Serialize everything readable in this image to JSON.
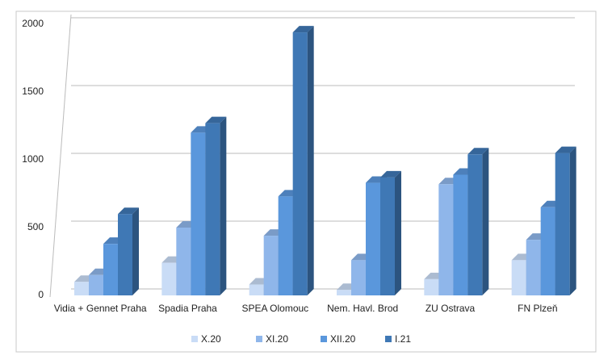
{
  "chart_data": {
    "type": "bar3d",
    "categories": [
      "Vidia + Gennet Praha",
      "Spadia Praha",
      "SPEA Olomouc",
      "Nem. Havl. Brod",
      "ZU Ostrava",
      "FN Plzeň"
    ],
    "series": [
      {
        "name": "X.20",
        "color": "#c9dcf6",
        "values": [
          100,
          240,
          80,
          40,
          120,
          260
        ]
      },
      {
        "name": "XI.20",
        "color": "#8fb6ea",
        "values": [
          150,
          500,
          440,
          260,
          820,
          410
        ]
      },
      {
        "name": "XII.20",
        "color": "#5a97dc",
        "values": [
          380,
          1200,
          730,
          830,
          890,
          650
        ]
      },
      {
        "name": "I.21",
        "color": "#3f78b5",
        "values": [
          600,
          1270,
          1940,
          870,
          1040,
          1050
        ]
      }
    ],
    "ylim": [
      0,
      2000
    ],
    "yticks": [
      0,
      500,
      1000,
      1500,
      2000
    ],
    "grid": true,
    "legend": "bottom"
  }
}
